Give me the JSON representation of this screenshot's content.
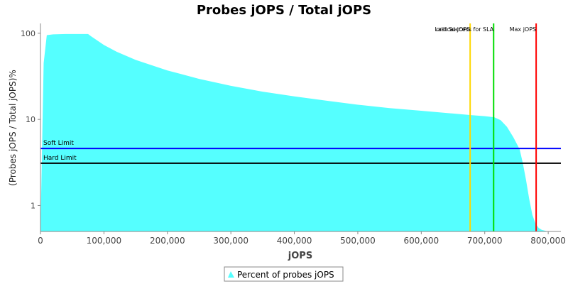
{
  "chart_data": {
    "type": "area",
    "title": "Probes jOPS / Total jOPS",
    "xlabel": "jOPS",
    "ylabel": "(Probes jOPS / Total jOPS)%",
    "y_scale": "log",
    "xlim": [
      0,
      820000
    ],
    "ylim": [
      0.5,
      130
    ],
    "x_ticks": [
      0,
      100000,
      200000,
      300000,
      400000,
      500000,
      600000,
      700000,
      800000
    ],
    "x_tick_labels": [
      "0",
      "100,000",
      "200,000",
      "300,000",
      "400,000",
      "500,000",
      "600,000",
      "700,000",
      "800,000"
    ],
    "y_ticks": [
      1,
      10,
      100
    ],
    "y_tick_labels": [
      "1",
      "10",
      "100"
    ],
    "grid": false,
    "legend_position": "bottom",
    "series": [
      {
        "name": "Percent of probes jOPS",
        "color": "#55FFFF",
        "x": [
          0,
          5000,
          10000,
          20000,
          40000,
          60000,
          75000,
          80000,
          100000,
          120000,
          150000,
          200000,
          250000,
          300000,
          350000,
          400000,
          450000,
          500000,
          550000,
          600000,
          650000,
          680000,
          700000,
          715000,
          725000,
          735000,
          745000,
          755000,
          760000,
          765000,
          770000,
          775000,
          780000,
          785000,
          790000,
          800000,
          812000
        ],
        "values": [
          0.5,
          45,
          95,
          97,
          98,
          98,
          98,
          92,
          73,
          61,
          49,
          37,
          29.5,
          24.5,
          21,
          18.5,
          16.5,
          14.8,
          13.5,
          12.6,
          11.7,
          11.2,
          10.9,
          10.6,
          9.8,
          8.2,
          6.2,
          4.5,
          3.1,
          2.0,
          1.2,
          0.78,
          0.62,
          0.55,
          0.52,
          0.5,
          0.5
        ]
      }
    ],
    "horizontal_lines": [
      {
        "label": "Soft Limit",
        "value": 4.6,
        "color": "#0000FF"
      },
      {
        "label": "Hard Limit",
        "value": 3.1,
        "color": "#000000"
      }
    ],
    "vertical_lines": [
      {
        "label": "critical-jOPS",
        "value": 677000,
        "color": "#FFD700"
      },
      {
        "label": "Last Success for SLA",
        "value": 714000,
        "color": "#00DD00"
      },
      {
        "label": "Max jOPS",
        "value": 781000,
        "color": "#FF0000"
      }
    ]
  }
}
